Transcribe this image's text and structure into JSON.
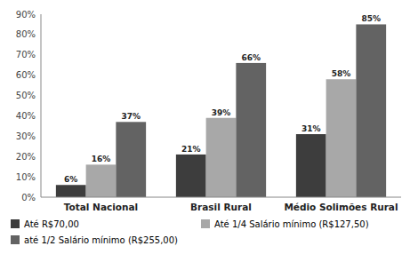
{
  "chart_data": {
    "type": "bar",
    "categories": [
      "Total Nacional",
      "Brasil Rural",
      "Médio Solimões Rural"
    ],
    "series": [
      {
        "name": "Até R$70,00",
        "color": "#3d3d3d",
        "values": [
          6,
          21,
          31
        ],
        "value_labels": [
          "6%",
          "21%",
          "31%"
        ]
      },
      {
        "name": "Até 1/4 Salário mínimo (R$127,50)",
        "color": "#a8a8a8",
        "values": [
          16,
          39,
          58
        ],
        "value_labels": [
          "16%",
          "39%",
          "58%"
        ]
      },
      {
        "name": "até 1/2 Salário mínimo (R$255,00)",
        "color": "#636363",
        "values": [
          37,
          66,
          85
        ],
        "value_labels": [
          "37%",
          "66%",
          "85%"
        ]
      }
    ],
    "ylim": [
      0,
      90
    ],
    "yticks": [
      {
        "value": 0,
        "label": "0%"
      },
      {
        "value": 10,
        "label": "10%"
      },
      {
        "value": 20,
        "label": "20%"
      },
      {
        "value": 30,
        "label": "30%"
      },
      {
        "value": 40,
        "label": "40%"
      },
      {
        "value": 50,
        "label": "50%"
      },
      {
        "value": 60,
        "label": "60%"
      },
      {
        "value": 70,
        "label": "70%"
      },
      {
        "value": 80,
        "label": "80%"
      },
      {
        "value": 90,
        "label": "90%"
      }
    ],
    "grid": false,
    "data_labels": true,
    "legend": "bottom"
  }
}
